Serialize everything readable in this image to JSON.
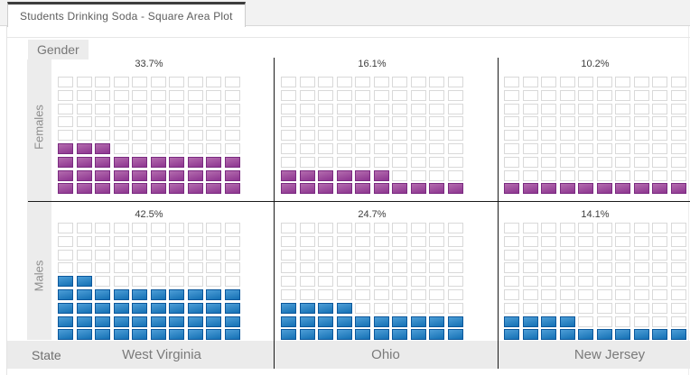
{
  "tab": {
    "title": "Students Drinking Soda - Square Area Plot"
  },
  "chart": {
    "row_dimension_label": "Gender",
    "col_dimension_label": "State",
    "rows": [
      {
        "label": "Females"
      },
      {
        "label": "Males"
      }
    ],
    "columns": [
      {
        "label": "West Virginia"
      },
      {
        "label": "Ohio"
      },
      {
        "label": "New Jersey"
      }
    ]
  },
  "chart_data": {
    "type": "waffle_square_area",
    "title": "Students Drinking Soda - Square Area Plot",
    "categories": [
      "West Virginia",
      "Ohio",
      "New Jersey"
    ],
    "series": [
      {
        "name": "Females",
        "values_percent": [
          33.7,
          16.1,
          10.2
        ],
        "labels": [
          "33.7%",
          "16.1%",
          "10.2%"
        ],
        "filled_squares": [
          33,
          16,
          10
        ],
        "color": "#8d3590",
        "color_light": "#b46cae",
        "color_border": "#7a2a80"
      },
      {
        "name": "Males",
        "values_percent": [
          42.5,
          24.7,
          14.1
        ],
        "labels": [
          "42.5%",
          "24.7%",
          "14.1%"
        ],
        "filled_squares": [
          42,
          24,
          14
        ],
        "color": "#1470b4",
        "color_light": "#4d9ed7",
        "color_border": "#0b579b"
      }
    ],
    "grid": {
      "columns": 10,
      "rows": 9,
      "percent_per_square": 1
    },
    "empty_square_border": "#d9d9d9",
    "layout": {
      "legend": "none",
      "facet_rows": "Gender",
      "facet_cols": "State",
      "value_labels_position": "top-center"
    }
  }
}
